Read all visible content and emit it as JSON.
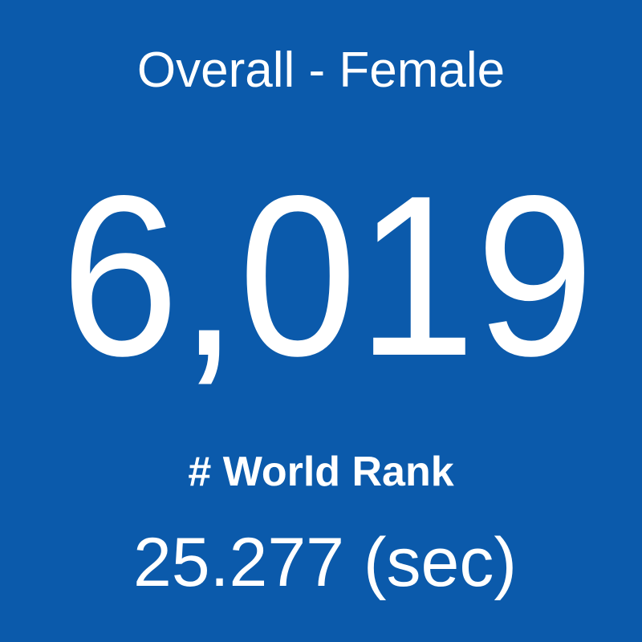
{
  "tile": {
    "title": "Overall - Female",
    "value": "6,019",
    "label": "# World Rank",
    "time": "25.277 (sec)"
  }
}
